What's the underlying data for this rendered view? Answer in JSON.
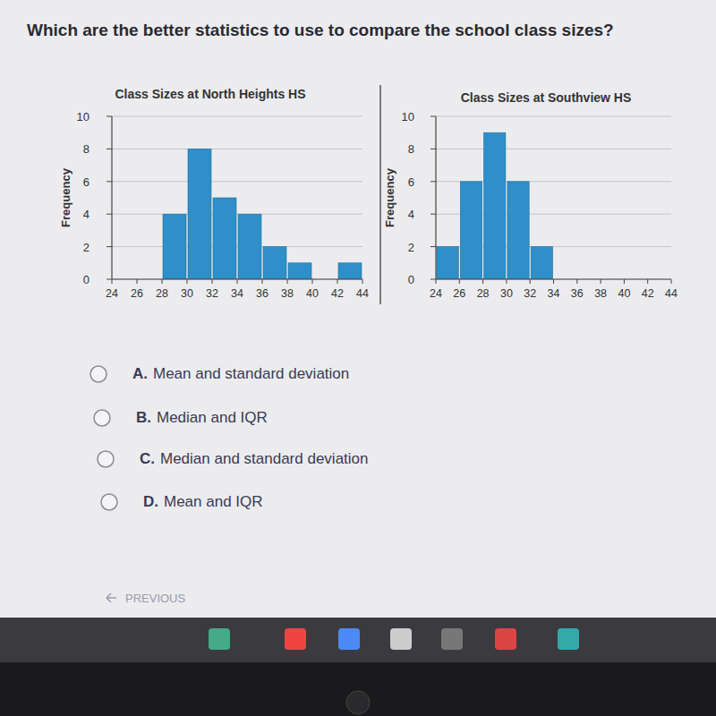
{
  "question": "Which are the better statistics to use to compare the school class sizes?",
  "chart_data": [
    {
      "type": "histogram",
      "title": "Class Sizes at North Heights HS",
      "y_label": "Frequency",
      "bins": [
        24,
        26,
        28,
        30,
        32,
        34,
        36,
        38,
        40,
        42,
        44
      ],
      "values": [
        0,
        0,
        4,
        8,
        5,
        4,
        2,
        1,
        0,
        1
      ],
      "color": "#2e8fc9",
      "xlim": [
        24,
        44
      ],
      "ylim": [
        0,
        10
      ],
      "xticks": [
        24,
        26,
        28,
        30,
        32,
        34,
        36,
        38,
        40,
        42,
        44
      ],
      "yticks": [
        0,
        2,
        4,
        6,
        8,
        10
      ],
      "grid": true
    },
    {
      "type": "histogram",
      "title": "Class Sizes at Southview HS",
      "y_label": "Frequency",
      "bins": [
        24,
        26,
        28,
        30,
        32,
        34,
        36,
        38,
        40,
        42,
        44
      ],
      "values": [
        2,
        6,
        9,
        6,
        2,
        0,
        0,
        0,
        0,
        0
      ],
      "color": "#2e8fc9",
      "xlim": [
        24,
        44
      ],
      "ylim": [
        0,
        10
      ],
      "xticks": [
        24,
        26,
        28,
        30,
        32,
        34,
        36,
        38,
        40,
        42,
        44
      ],
      "yticks": [
        0,
        2,
        4,
        6,
        8,
        10
      ],
      "grid": true
    }
  ],
  "options": [
    {
      "letter": "A.",
      "text": "Mean and standard deviation"
    },
    {
      "letter": "B.",
      "text": "Median and IQR"
    },
    {
      "letter": "C.",
      "text": "Median and standard deviation"
    },
    {
      "letter": "D.",
      "text": "Mean and IQR"
    }
  ],
  "nav": {
    "previous": "PREVIOUS"
  }
}
